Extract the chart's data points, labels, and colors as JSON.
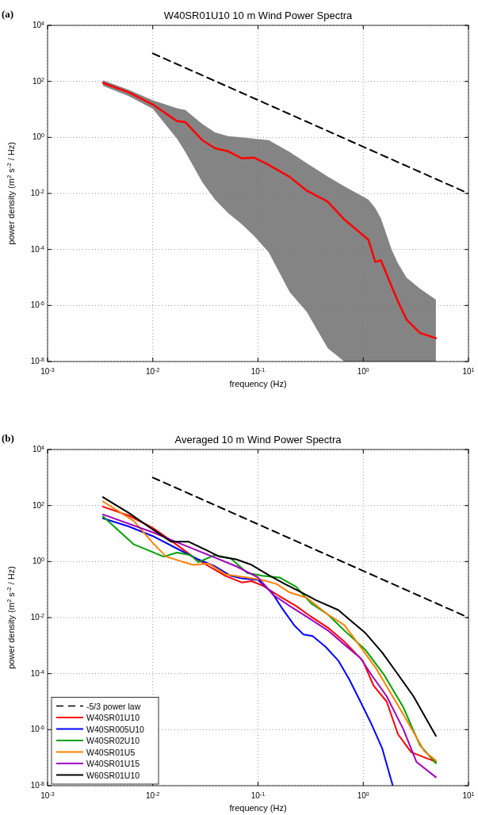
{
  "chart_data": [
    {
      "type": "line",
      "title": "W40SR01U10 10 m Wind Power Spectra",
      "xlabel": "frequency (Hz)",
      "ylabel": "power density (m$^{2}$ s$^{-2}$ / Hz)",
      "annotations": [
        "(a)"
      ],
      "log": "xy",
      "grid": true,
      "legend": false,
      "xlim": [
        0.001,
        10
      ],
      "ylim": [
        1e-08,
        10000
      ],
      "xticks": [
        {
          "value": 0.001,
          "label": "10$^{-3}$"
        },
        {
          "value": 0.01,
          "label": "10$^{-2}$"
        },
        {
          "value": 0.1,
          "label": "10$^{-1}$"
        },
        {
          "value": 1,
          "label": "10$^{0}$"
        },
        {
          "value": 10,
          "label": "10$^{1}$"
        }
      ],
      "yticks": [
        {
          "value": 1e-08,
          "label": "10$^{-8}$"
        },
        {
          "value": 1e-06,
          "label": "10$^{-6}$"
        },
        {
          "value": 0.0001,
          "label": "10$^{-4}$"
        },
        {
          "value": 0.01,
          "label": "10$^{-2}$"
        },
        {
          "value": 1,
          "label": "10$^{0}$"
        },
        {
          "value": 100,
          "label": "10$^{2}$"
        },
        {
          "value": 10000,
          "label": "10$^{4}$"
        }
      ],
      "series": [
        {
          "color": "#ff0000",
          "x": [
            0.00336,
            0.0059,
            0.01,
            0.017,
            0.0204,
            0.0296,
            0.039,
            0.052,
            0.07,
            0.092,
            0.126,
            0.2,
            0.29,
            0.46,
            0.66,
            1.12,
            1.3,
            1.47,
            1.86,
            2.14,
            2.57,
            3.45,
            4.9
          ],
          "values": [
            89,
            41,
            15,
            3.8,
            3.5,
            0.79,
            0.41,
            0.32,
            0.18,
            0.19,
            0.105,
            0.039,
            0.0126,
            0.0051,
            0.00118,
            0.00022,
            3.6e-05,
            4.1e-05,
            4.8e-06,
            1.4e-06,
            3.2e-07,
            1.05e-07,
            6.8e-08
          ],
          "lower": [
            70,
            30,
            10.5,
            0.9,
            0.3,
            0.025,
            0.006,
            0.002,
            0.0008,
            0.0003,
            8e-05,
            3e-06,
            6e-07,
            3e-08,
            1e-08,
            1e-08,
            1e-08,
            1e-08,
            1e-08,
            1e-08,
            1e-08,
            1e-08,
            1e-08
          ],
          "upper": [
            110,
            50,
            21,
            11,
            9.5,
            3,
            1.5,
            1.1,
            1,
            0.9,
            0.8,
            0.3,
            0.12,
            0.04,
            0.018,
            0.006,
            0.003,
            0.0013,
            0.0001,
            3.2e-05,
            1e-05,
            4e-06,
            1.6e-06
          ]
        },
        {
          "color": "#000000",
          "line_style": "dashed",
          "x": [
            0.01,
            10
          ],
          "values": [
            1000,
            0.01
          ]
        }
      ]
    },
    {
      "type": "line",
      "title": "Averaged 10 m Wind Power Spectra",
      "xlabel": "frequency (Hz)",
      "ylabel": "power density (m$^{2}$ s$^{-2}$ / Hz)",
      "annotations": [
        "(b)"
      ],
      "log": "xy",
      "grid": true,
      "legend": "bottom left",
      "xlim": [
        0.001,
        10
      ],
      "ylim": [
        1e-08,
        10000
      ],
      "xticks": [
        {
          "value": 0.001,
          "label": "10$^{-3}$"
        },
        {
          "value": 0.01,
          "label": "10$^{-2}$"
        },
        {
          "value": 0.1,
          "label": "10$^{-1}$"
        },
        {
          "value": 1,
          "label": "10$^{0}$"
        },
        {
          "value": 10,
          "label": "10$^{1}$"
        }
      ],
      "yticks": [
        {
          "value": 1e-08,
          "label": "10$^{-8}$"
        },
        {
          "value": 1e-06,
          "label": "10$^{-6}$"
        },
        {
          "value": 0.0001,
          "label": "10$^{-4}$"
        },
        {
          "value": 0.01,
          "label": "10$^{-2}$"
        },
        {
          "value": 1,
          "label": "10$^{0}$"
        },
        {
          "value": 100,
          "label": "10$^{2}$"
        },
        {
          "value": 10000,
          "label": "10$^{4}$"
        }
      ],
      "series": [
        {
          "name": "-5/3 power law",
          "color": "#000000",
          "line_style": "dashed",
          "x": [
            0.01,
            10
          ],
          "values": [
            1000,
            0.01
          ]
        },
        {
          "name": "W40SR01U10",
          "color": "#ff0000",
          "x": [
            0.00336,
            0.0059,
            0.01,
            0.016,
            0.024,
            0.034,
            0.049,
            0.07,
            0.087,
            0.11,
            0.16,
            0.23,
            0.32,
            0.46,
            0.66,
            0.99,
            1.25,
            1.67,
            2.14,
            2.86,
            4.9
          ],
          "values": [
            91,
            44,
            16,
            4.6,
            1.5,
            0.68,
            0.31,
            0.18,
            0.2,
            0.14,
            0.058,
            0.026,
            0.0107,
            0.0044,
            0.0014,
            0.00029,
            3.8e-05,
            1e-05,
            6.8e-07,
            1.56e-07,
            7.1e-08
          ]
        },
        {
          "name": "W40SR005U10",
          "color": "#0000ff",
          "x": [
            0.00336,
            0.0059,
            0.01,
            0.017,
            0.027,
            0.039,
            0.055,
            0.07,
            0.1,
            0.135,
            0.17,
            0.22,
            0.27,
            0.33,
            0.44,
            0.58,
            0.74,
            0.94,
            1.19,
            1.51,
            1.9
          ],
          "values": [
            35,
            18,
            8.1,
            2.9,
            1.2,
            0.68,
            0.31,
            0.25,
            0.22,
            0.08,
            0.021,
            0.0054,
            0.0025,
            0.0022,
            0.0009,
            0.00029,
            6e-05,
            1e-05,
            1.65e-06,
            2.2e-07,
            1.05e-08
          ]
        },
        {
          "name": "W40SR02U10",
          "color": "#00a000",
          "x": [
            0.00336,
            0.0066,
            0.0127,
            0.017,
            0.023,
            0.027,
            0.039,
            0.055,
            0.079,
            0.11,
            0.16,
            0.23,
            0.32,
            0.46,
            0.66,
            1.05,
            1.57,
            2.4,
            3.45,
            4.9
          ],
          "values": [
            41,
            4.1,
            1.5,
            2.1,
            1.7,
            0.95,
            1.7,
            1.3,
            0.39,
            0.31,
            0.27,
            0.126,
            0.032,
            0.013,
            0.0035,
            0.0007,
            9.3e-05,
            6.3e-06,
            2.8e-07,
            6.3e-08
          ]
        },
        {
          "name": "W40SR01U5",
          "color": "#ff8000",
          "x": [
            0.00336,
            0.0066,
            0.01,
            0.0134,
            0.024,
            0.034,
            0.049,
            0.079,
            0.11,
            0.15,
            0.2,
            0.29,
            0.46,
            0.66,
            0.94,
            1.33,
            1.9,
            2.7,
            3.8,
            4.9
          ],
          "values": [
            140,
            28,
            4.6,
            1.5,
            0.76,
            0.85,
            0.35,
            0.27,
            0.22,
            0.158,
            0.079,
            0.051,
            0.013,
            0.0054,
            0.0009,
            0.00015,
            1.55e-05,
            1.65e-06,
            1.7e-07,
            7.9e-08
          ]
        },
        {
          "name": "W40SR01U15",
          "color": "#a000c0",
          "x": [
            0.00336,
            0.01,
            0.019,
            0.034,
            0.062,
            0.1,
            0.14,
            0.2,
            0.29,
            0.46,
            0.66,
            0.94,
            1.19,
            1.67,
            2.4,
            3.2,
            4.9
          ],
          "values": [
            48,
            11,
            4.1,
            1.7,
            0.68,
            0.27,
            0.064,
            0.026,
            0.0107,
            0.0035,
            0.0011,
            0.00036,
            9.3e-05,
            1.55e-05,
            1.05e-06,
            7.1e-08,
            2e-08
          ]
        },
        {
          "name": "W60SR01U10",
          "color": "#000000",
          "x": [
            0.00336,
            0.0059,
            0.01,
            0.015,
            0.022,
            0.032,
            0.043,
            0.062,
            0.087,
            0.13,
            0.18,
            0.26,
            0.36,
            0.58,
            0.74,
            1.05,
            1.51,
            2.14,
            3,
            4.9
          ],
          "values": [
            200,
            55,
            14,
            5.1,
            5.1,
            2.6,
            1.5,
            1.2,
            0.76,
            0.31,
            0.158,
            0.079,
            0.041,
            0.0186,
            0.0085,
            0.0028,
            0.00057,
            9.3e-05,
            1.55e-05,
            6e-07
          ]
        }
      ]
    }
  ]
}
